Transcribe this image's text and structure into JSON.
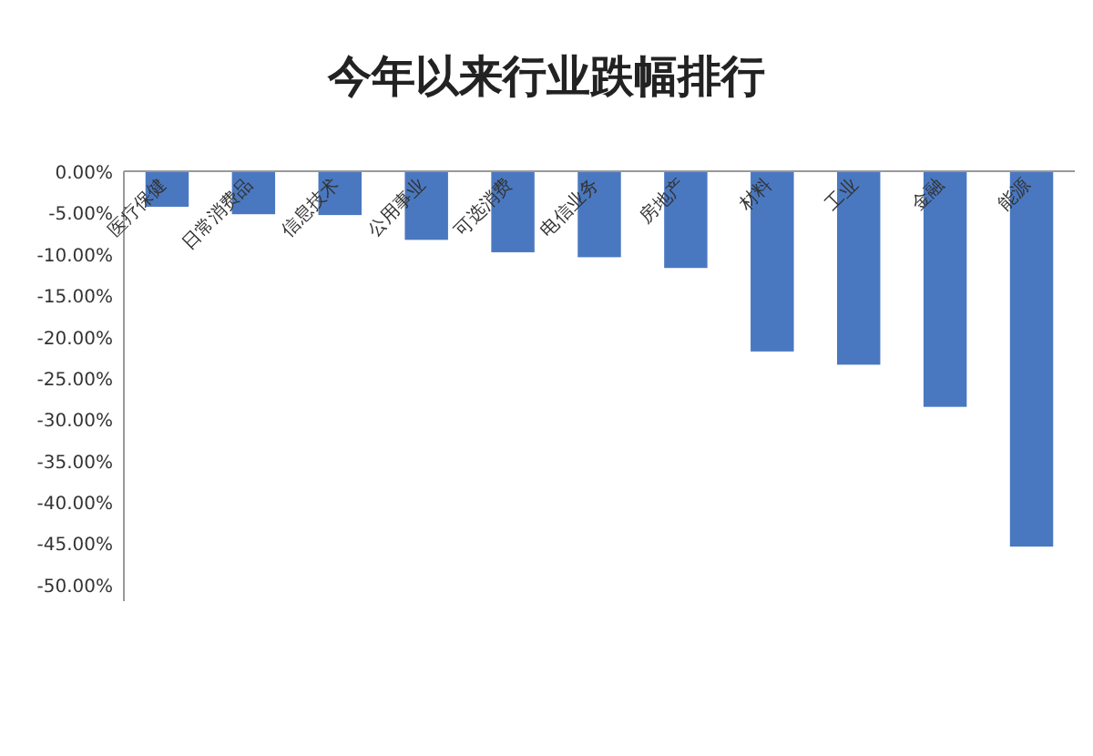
{
  "chart_data": {
    "type": "bar",
    "title": "今年以来行业跌幅排行",
    "categories": [
      "医疗保健",
      "日常消费品",
      "信息技术",
      "公用事业",
      "可选消费",
      "电信业务",
      "房地产",
      "材料",
      "工业",
      "金融",
      "能源"
    ],
    "values": [
      -4.3,
      -5.2,
      -5.3,
      -8.3,
      -9.8,
      -10.4,
      -11.7,
      -21.8,
      -23.4,
      -28.5,
      -45.4
    ],
    "color": "#4a78c0",
    "ylim": [
      -52,
      0
    ],
    "yticks": [
      {
        "value": 0,
        "label": "0.00%"
      },
      {
        "value": -5,
        "label": "-5.00%"
      },
      {
        "value": -10,
        "label": "-10.00%"
      },
      {
        "value": -15,
        "label": "-15.00%"
      },
      {
        "value": -20,
        "label": "-20.00%"
      },
      {
        "value": -25,
        "label": "-25.00%"
      },
      {
        "value": -30,
        "label": "-30.00%"
      },
      {
        "value": -35,
        "label": "-35.00%"
      },
      {
        "value": -40,
        "label": "-40.00%"
      },
      {
        "value": -45,
        "label": "-45.00%"
      },
      {
        "value": -50,
        "label": "-50.00%"
      }
    ],
    "grid": false
  }
}
